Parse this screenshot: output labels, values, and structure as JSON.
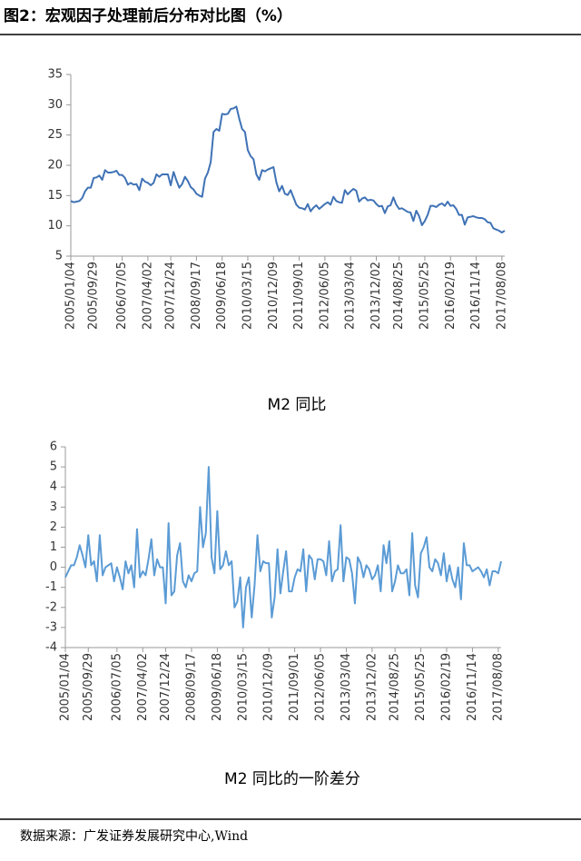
{
  "header": {
    "title": "图2：宏观因子处理前后分布对比图（%）"
  },
  "chart_data": [
    {
      "type": "line",
      "title": "M2 同比",
      "categories": [
        "2005/01/04",
        null,
        null,
        null,
        null,
        null,
        null,
        null,
        "2005/09/29",
        null,
        null,
        null,
        null,
        null,
        null,
        null,
        null,
        null,
        "2006/07/05",
        null,
        null,
        null,
        null,
        null,
        null,
        null,
        null,
        "2007/04/02",
        null,
        null,
        null,
        null,
        null,
        null,
        null,
        "2007/12/24",
        null,
        null,
        null,
        null,
        null,
        null,
        null,
        null,
        "2008/09/17",
        null,
        null,
        null,
        null,
        null,
        null,
        null,
        null,
        "2009/06/18",
        null,
        null,
        null,
        null,
        null,
        null,
        null,
        null,
        "2010/03/15",
        null,
        null,
        null,
        null,
        null,
        null,
        null,
        null,
        "2010/12/09",
        null,
        null,
        null,
        null,
        null,
        null,
        null,
        null,
        "2011/09/01",
        null,
        null,
        null,
        null,
        null,
        null,
        null,
        null,
        "2012/06/05",
        null,
        null,
        null,
        null,
        null,
        null,
        null,
        null,
        "2013/03/04",
        null,
        null,
        null,
        null,
        null,
        null,
        null,
        null,
        "2013/12/02",
        null,
        null,
        null,
        null,
        null,
        null,
        null,
        "2014/08/25",
        null,
        null,
        null,
        null,
        null,
        null,
        null,
        null,
        "2015/05/25",
        null,
        null,
        null,
        null,
        null,
        null,
        null,
        null,
        "2016/02/19",
        null,
        null,
        null,
        null,
        null,
        null,
        null,
        null,
        "2016/11/14",
        null,
        null,
        null,
        null,
        null,
        null,
        null,
        null,
        "2017/08/08",
        null
      ],
      "series": [
        {
          "name": "M2 同比",
          "color": "#3f72b5",
          "values": [
            14.1,
            13.9,
            14.0,
            14.1,
            14.6,
            15.7,
            16.3,
            16.3,
            17.9,
            18.0,
            18.3,
            17.6,
            19.2,
            18.8,
            18.8,
            18.9,
            19.1,
            18.4,
            18.4,
            17.9,
            16.8,
            17.1,
            16.8,
            16.9,
            15.9,
            17.8,
            17.3,
            17.1,
            16.7,
            17.1,
            18.5,
            18.1,
            18.5,
            18.5,
            18.5,
            16.7,
            18.9,
            17.5,
            16.3,
            16.9,
            18.1,
            17.4,
            16.4,
            16.0,
            15.3,
            15.0,
            14.8,
            17.8,
            18.8,
            20.5,
            25.5,
            26.0,
            25.7,
            28.5,
            28.4,
            28.5,
            29.3,
            29.4,
            29.7,
            27.7,
            26.0,
            25.5,
            22.5,
            21.5,
            21.0,
            18.5,
            17.6,
            19.2,
            19.0,
            19.3,
            19.5,
            19.7,
            17.2,
            15.7,
            16.6,
            15.3,
            15.1,
            15.9,
            14.7,
            13.5,
            13.0,
            12.9,
            12.7,
            13.6,
            12.4,
            13.0,
            13.4,
            12.8,
            13.2,
            13.6,
            13.9,
            13.5,
            14.8,
            14.1,
            13.9,
            13.8,
            15.9,
            15.2,
            15.7,
            16.1,
            15.8,
            14.0,
            14.5,
            14.7,
            14.2,
            14.3,
            14.2,
            13.6,
            13.2,
            13.3,
            12.1,
            13.2,
            13.4,
            14.7,
            13.5,
            12.8,
            12.9,
            12.6,
            12.3,
            12.2,
            10.8,
            12.5,
            11.6,
            10.1,
            10.8,
            11.8,
            13.3,
            13.3,
            13.1,
            13.5,
            13.7,
            13.3,
            14.0,
            13.3,
            13.4,
            12.8,
            11.8,
            11.8,
            10.2,
            11.4,
            11.5,
            11.6,
            11.4,
            11.3,
            11.3,
            11.1,
            10.6,
            10.5,
            9.6,
            9.4,
            9.2,
            8.9,
            9.2
          ]
        }
      ],
      "ylim": [
        5,
        35
      ],
      "yticks": [
        5,
        10,
        15,
        20,
        25,
        30,
        35
      ]
    },
    {
      "type": "line",
      "title": "M2 同比的一阶差分",
      "categories": [
        "2005/01/04",
        null,
        null,
        null,
        null,
        null,
        null,
        null,
        "2005/09/29",
        null,
        null,
        null,
        null,
        null,
        null,
        null,
        null,
        null,
        "2006/07/05",
        null,
        null,
        null,
        null,
        null,
        null,
        null,
        null,
        "2007/04/02",
        null,
        null,
        null,
        null,
        null,
        null,
        null,
        "2007/12/24",
        null,
        null,
        null,
        null,
        null,
        null,
        null,
        null,
        "2008/09/17",
        null,
        null,
        null,
        null,
        null,
        null,
        null,
        null,
        "2009/06/18",
        null,
        null,
        null,
        null,
        null,
        null,
        null,
        null,
        "2010/03/15",
        null,
        null,
        null,
        null,
        null,
        null,
        null,
        null,
        "2010/12/09",
        null,
        null,
        null,
        null,
        null,
        null,
        null,
        null,
        "2011/09/01",
        null,
        null,
        null,
        null,
        null,
        null,
        null,
        null,
        "2012/06/05",
        null,
        null,
        null,
        null,
        null,
        null,
        null,
        null,
        "2013/03/04",
        null,
        null,
        null,
        null,
        null,
        null,
        null,
        null,
        "2013/12/02",
        null,
        null,
        null,
        null,
        null,
        null,
        null,
        "2014/08/25",
        null,
        null,
        null,
        null,
        null,
        null,
        null,
        null,
        "2015/05/25",
        null,
        null,
        null,
        null,
        null,
        null,
        null,
        null,
        "2016/02/19",
        null,
        null,
        null,
        null,
        null,
        null,
        null,
        null,
        "2016/11/14",
        null,
        null,
        null,
        null,
        null,
        null,
        null,
        null,
        "2017/08/08",
        null
      ],
      "series": [
        {
          "name": "M2 同比的一阶差分",
          "color": "#5b9bd5",
          "values": [
            -0.5,
            -0.2,
            0.1,
            0.1,
            0.5,
            1.1,
            0.6,
            0.0,
            1.6,
            0.1,
            0.3,
            -0.7,
            1.6,
            -0.4,
            0.0,
            0.1,
            0.2,
            -0.7,
            0.0,
            -0.5,
            -1.1,
            0.3,
            -0.3,
            0.1,
            -1.0,
            1.9,
            -0.5,
            -0.2,
            -0.4,
            0.4,
            1.4,
            -0.4,
            0.4,
            0.0,
            0.0,
            -1.8,
            2.2,
            -1.4,
            -1.2,
            0.6,
            1.2,
            -0.7,
            -1.0,
            -0.4,
            -0.7,
            -0.3,
            -0.2,
            3.0,
            1.0,
            1.7,
            5.0,
            0.5,
            -0.3,
            2.8,
            -0.1,
            0.1,
            0.8,
            0.1,
            0.3,
            -2.0,
            -1.7,
            -0.5,
            -3.0,
            -1.0,
            -0.5,
            -2.5,
            -0.9,
            1.6,
            -0.2,
            0.3,
            0.2,
            0.2,
            -2.5,
            -1.5,
            0.9,
            -1.3,
            -0.2,
            0.8,
            -1.2,
            -1.2,
            -0.5,
            -0.1,
            -0.2,
            0.9,
            -1.2,
            0.6,
            0.4,
            -0.6,
            0.4,
            0.4,
            0.3,
            -0.4,
            1.3,
            -0.7,
            -0.2,
            -0.1,
            2.1,
            -0.7,
            0.5,
            0.4,
            -0.3,
            -1.8,
            0.5,
            0.2,
            -0.5,
            0.1,
            -0.1,
            -0.6,
            -0.4,
            0.1,
            -1.2,
            1.1,
            0.2,
            1.3,
            -1.2,
            -0.7,
            0.1,
            -0.3,
            -0.3,
            -0.1,
            -1.4,
            1.7,
            -0.9,
            -1.5,
            0.7,
            1.0,
            1.5,
            0.0,
            -0.2,
            0.4,
            0.2,
            -0.4,
            0.7,
            -0.7,
            0.1,
            -0.6,
            -1.0,
            0.0,
            -1.6,
            1.2,
            0.1,
            0.1,
            -0.2,
            -0.1,
            0.0,
            -0.2,
            -0.5,
            -0.1,
            -0.9,
            -0.2,
            -0.2,
            -0.3,
            0.3
          ]
        }
      ],
      "ylim": [
        -4,
        6
      ],
      "yticks": [
        -4,
        -3,
        -2,
        -1,
        0,
        1,
        2,
        3,
        4,
        5,
        6
      ]
    }
  ],
  "footer": {
    "source": "数据来源：广发证券发展研究中心,Wind"
  }
}
